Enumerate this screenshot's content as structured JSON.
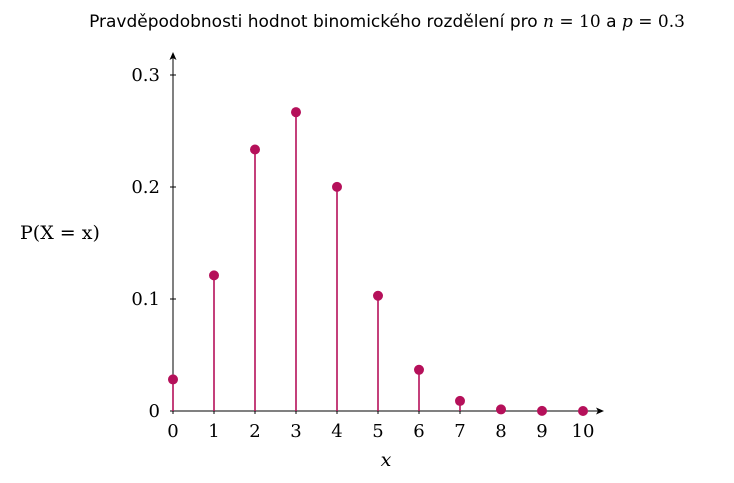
{
  "title_parts": {
    "text1": "Pravděpodobnosti hodnot binomického rozdělení pro ",
    "n_sym": "n",
    "eq1": " = ",
    "n_val": "10",
    "text2": " a ",
    "p_sym": "p",
    "eq2": " = ",
    "p_val": "0.3"
  },
  "chart_data": {
    "type": "stem",
    "title": "Pravděpodobnosti hodnot binomického rozdělení pro n = 10 a p = 0.3",
    "xlabel": "x",
    "ylabel": "P(X = x)",
    "x": [
      0,
      1,
      2,
      3,
      4,
      5,
      6,
      7,
      8,
      9,
      10
    ],
    "values": [
      0.0282,
      0.1211,
      0.2335,
      0.2668,
      0.2001,
      0.1029,
      0.0368,
      0.009,
      0.0014,
      0.0001,
      0.0
    ],
    "x_ticks": [
      "0",
      "1",
      "2",
      "3",
      "4",
      "5",
      "6",
      "7",
      "8",
      "9",
      "10"
    ],
    "y_ticks": [
      0,
      0.1,
      0.2,
      0.3
    ],
    "y_tick_labels": [
      "0",
      "0.1",
      "0.2",
      "0.3"
    ],
    "xlim": [
      0,
      10.5
    ],
    "ylim": [
      0,
      0.3
    ],
    "color": "#b5105a",
    "grid": false
  }
}
